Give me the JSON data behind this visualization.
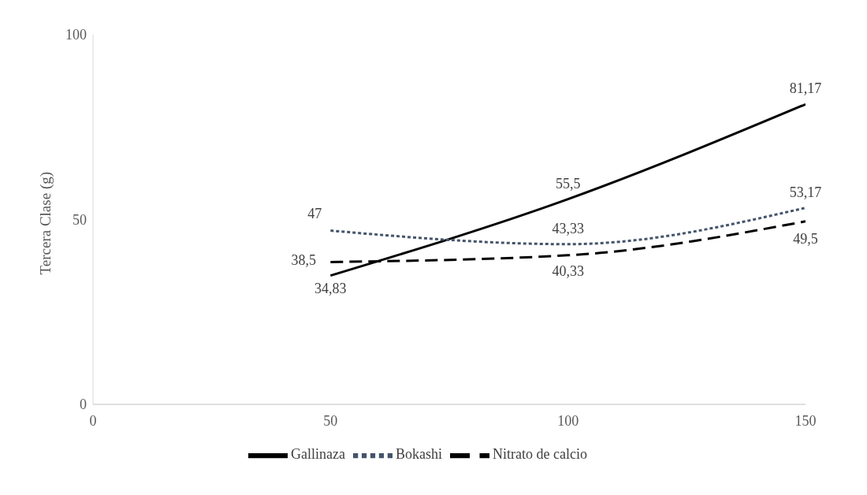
{
  "chart_data": {
    "type": "line",
    "ylabel": "Tercera Clase (g)",
    "x": [
      50,
      100,
      150
    ],
    "series": [
      {
        "name": "Gallinaza",
        "color": "#000000",
        "line_style": "solid",
        "values": [
          34.83,
          55.5,
          81.17
        ],
        "value_labels": [
          "34,83",
          "55,5",
          "81,17"
        ]
      },
      {
        "name": "Bokashi",
        "color": "#44546a",
        "line_style": "dotted",
        "values": [
          47,
          43.33,
          53.17
        ],
        "value_labels": [
          "47",
          "43,33",
          "53,17"
        ]
      },
      {
        "name": "Nitrato de calcio",
        "color": "#000000",
        "line_style": "dashed",
        "values": [
          38.5,
          40.33,
          49.5
        ],
        "value_labels": [
          "38,5",
          "40,33",
          "49,5"
        ]
      }
    ],
    "xlim": [
      0,
      150
    ],
    "xticks": [
      0,
      50,
      100,
      150
    ],
    "ylim": [
      0,
      100
    ],
    "yticks": [
      0,
      50,
      100
    ],
    "grid": false,
    "legend": "bottom",
    "marker": "none"
  }
}
